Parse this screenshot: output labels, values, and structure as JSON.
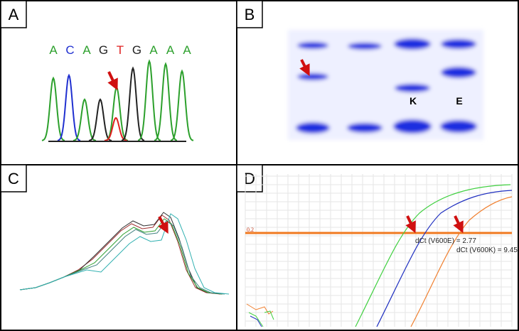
{
  "panels": [
    {
      "label": "A",
      "sequence": [
        {
          "base": "A",
          "color": "#2ca02c"
        },
        {
          "base": "C",
          "color": "#2030d0"
        },
        {
          "base": "A",
          "color": "#2ca02c"
        },
        {
          "base": "G",
          "color": "#222222"
        },
        {
          "base": "T",
          "color": "#e02020"
        },
        {
          "base": "G",
          "color": "#222222"
        },
        {
          "base": "A",
          "color": "#2ca02c"
        },
        {
          "base": "A",
          "color": "#2ca02c"
        },
        {
          "base": "A",
          "color": "#2ca02c"
        }
      ]
    },
    {
      "label": "B",
      "bands": [
        "K",
        "E"
      ]
    },
    {
      "label": "C"
    },
    {
      "label": "D",
      "threshold": "0.2",
      "annotations": [
        "dCt (V600E) = 2.77",
        "dCt (V600K) = 9.45"
      ]
    }
  ]
}
